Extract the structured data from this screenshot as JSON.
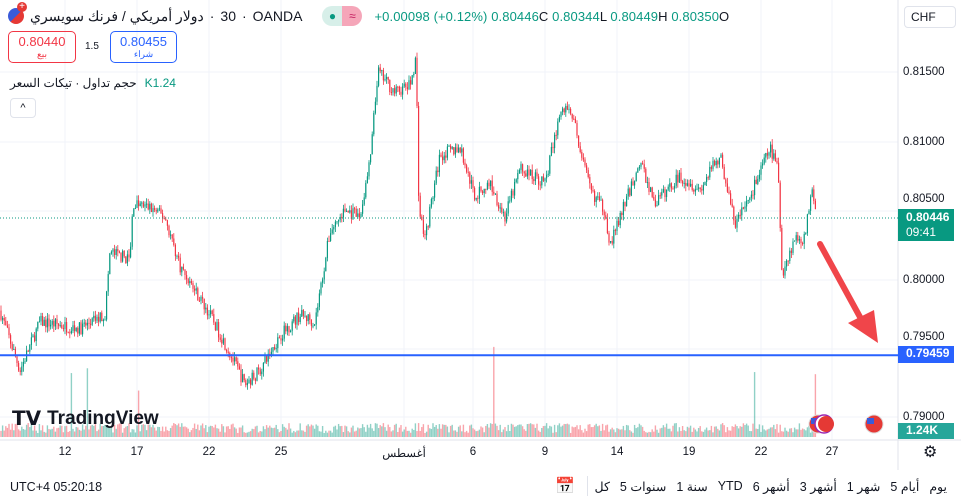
{
  "header": {
    "symbol": "دولار أمريكي / فرنك سويسري",
    "interval": "30",
    "exchange": "OANDA",
    "change": "+0.00098 (+0.12%)",
    "close": "0.80446",
    "close_l": "C",
    "low": "0.80344",
    "low_l": "L",
    "high": "0.80449",
    "high_l": "H",
    "open": "0.80350",
    "open_l": "O",
    "currency": "CHF"
  },
  "trade": {
    "sell_price": "0.80440",
    "sell_label": "بيع",
    "buy_price": "0.80455",
    "buy_label": "شراء",
    "spread": "1.5"
  },
  "volume_indicator": {
    "label": "حجم تداول · تيكات السعر",
    "value": "K1.24",
    "collapse": "^"
  },
  "price_axis": {
    "ticks": [
      "0.81500",
      "0.81000",
      "0.80500",
      "0.80000",
      "0.79500",
      "0.79000"
    ],
    "current_price": "0.80446",
    "countdown": "09:41",
    "line_price": "0.79459",
    "volume_tag": "1.24K"
  },
  "time_axis": {
    "ticks": [
      "12",
      "17",
      "22",
      "25",
      "أغسطس",
      "6",
      "9",
      "14",
      "19",
      "22",
      "27"
    ]
  },
  "logo": "TradingView",
  "footer": {
    "clock": "UTC+4 05:20:18",
    "ranges": [
      "كل",
      "5 سنوات",
      "1 سنة",
      "YTD",
      "6 أشهر",
      "3 أشهر",
      "1 شهر",
      "5 أيام",
      "يوم"
    ]
  },
  "colors": {
    "up": "#089981",
    "down": "#f23645",
    "line": "#2962ff",
    "arrow": "#f0454a"
  },
  "chart_data": {
    "type": "candlestick",
    "ylim": [
      0.789,
      0.817
    ],
    "horizontal_line": 0.79459,
    "current": 0.80446,
    "path": [
      [
        0,
        0.7978
      ],
      [
        20,
        0.7935
      ],
      [
        40,
        0.797
      ],
      [
        80,
        0.7965
      ],
      [
        105,
        0.7975
      ],
      [
        110,
        0.802
      ],
      [
        130,
        0.8015
      ],
      [
        133,
        0.8055
      ],
      [
        150,
        0.8052
      ],
      [
        165,
        0.8045
      ],
      [
        180,
        0.801
      ],
      [
        210,
        0.7975
      ],
      [
        228,
        0.795
      ],
      [
        245,
        0.7925
      ],
      [
        260,
        0.7935
      ],
      [
        280,
        0.796
      ],
      [
        300,
        0.7975
      ],
      [
        315,
        0.797
      ],
      [
        330,
        0.8035
      ],
      [
        345,
        0.805
      ],
      [
        360,
        0.8045
      ],
      [
        370,
        0.8085
      ],
      [
        378,
        0.815
      ],
      [
        395,
        0.8135
      ],
      [
        410,
        0.814
      ],
      [
        416,
        0.816
      ],
      [
        419,
        0.805
      ],
      [
        425,
        0.803
      ],
      [
        440,
        0.809
      ],
      [
        460,
        0.8095
      ],
      [
        475,
        0.806
      ],
      [
        490,
        0.807
      ],
      [
        505,
        0.8045
      ],
      [
        520,
        0.808
      ],
      [
        545,
        0.807
      ],
      [
        560,
        0.812
      ],
      [
        570,
        0.8125
      ],
      [
        590,
        0.8065
      ],
      [
        605,
        0.805
      ],
      [
        610,
        0.8025
      ],
      [
        625,
        0.8055
      ],
      [
        640,
        0.8085
      ],
      [
        655,
        0.8055
      ],
      [
        680,
        0.8075
      ],
      [
        700,
        0.8065
      ],
      [
        720,
        0.809
      ],
      [
        735,
        0.804
      ],
      [
        750,
        0.806
      ],
      [
        770,
        0.8095
      ],
      [
        778,
        0.808
      ],
      [
        782,
        0.8005
      ],
      [
        795,
        0.803
      ],
      [
        805,
        0.803
      ],
      [
        812,
        0.807
      ],
      [
        817,
        0.80446
      ]
    ]
  }
}
